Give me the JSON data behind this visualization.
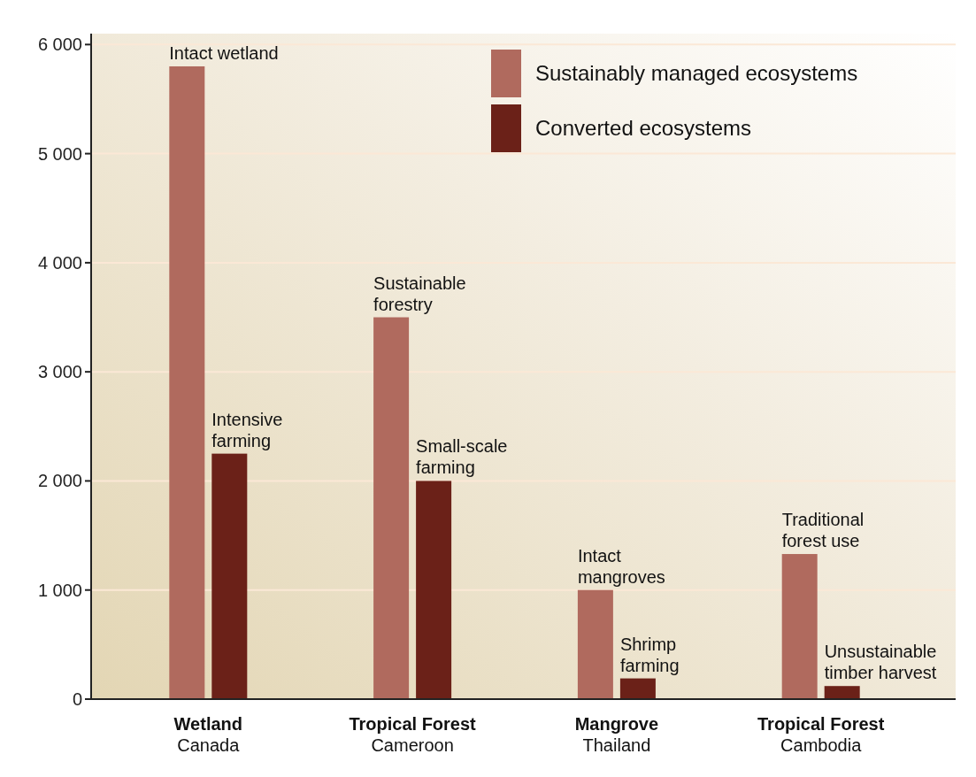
{
  "chart_data": {
    "type": "bar",
    "categories": [
      "Wetland\nCanada",
      "Tropical Forest\nCameroon",
      "Mangrove\nThailand",
      "Tropical Forest\nCambodia"
    ],
    "series": [
      {
        "name": "Sustainably managed ecosystems",
        "color": "#b06a5e",
        "values": [
          5800,
          3500,
          1000,
          1330
        ]
      },
      {
        "name": "Converted ecosystems",
        "color": "#6b2118",
        "values": [
          2250,
          2000,
          190,
          120
        ]
      }
    ],
    "ylim": [
      0,
      6100
    ],
    "yticks": [
      {
        "value": 0,
        "label": "0"
      },
      {
        "value": 1000,
        "label": "1 000"
      },
      {
        "value": 2000,
        "label": "2 000"
      },
      {
        "value": 3000,
        "label": "3 000"
      },
      {
        "value": 4000,
        "label": "4 000"
      },
      {
        "value": 5000,
        "label": "5 000"
      },
      {
        "value": 6000,
        "label": "6 000"
      }
    ],
    "grid": "y",
    "legend": "top right",
    "annotations": [
      {
        "text": "Intact wetland",
        "x": "Wetland\nCanada",
        "y": 5800
      },
      {
        "text": "Intensive\nfarming",
        "x": "Wetland\nCanada",
        "y": 2250
      },
      {
        "text": "Sustainable\nforestry",
        "x": "Tropical Forest\nCameroon",
        "y": 3500
      },
      {
        "text": "Small-scale\nfarming",
        "x": "Tropical Forest\nCameroon",
        "y": 2000
      },
      {
        "text": "Intact\nmangroves",
        "x": "Mangrove\nThailand",
        "y": 1000
      },
      {
        "text": "Shrimp\nfarming",
        "x": "Mangrove\nThailand",
        "y": 190
      },
      {
        "text": "Traditional\nforest use",
        "x": "Tropical Forest\nCambodia",
        "y": 1330
      },
      {
        "text": "Unsustainable\ntimber harvest",
        "x": "Tropical Forest\nCambodia",
        "y": 120
      }
    ]
  }
}
